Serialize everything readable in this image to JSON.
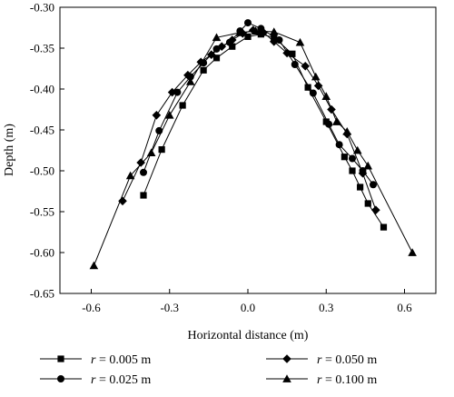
{
  "chart_data": {
    "type": "line",
    "xlabel": "Horizontal distance (m)",
    "ylabel": "Depth (m)",
    "xlim": [
      -0.72,
      0.72
    ],
    "ylim": [
      -0.65,
      -0.3
    ],
    "x_ticks": [
      "-0.6",
      "-0.3",
      "0.0",
      "0.3",
      "0.6"
    ],
    "y_ticks": [
      "-0.30",
      "-0.35",
      "-0.40",
      "-0.45",
      "-0.50",
      "-0.55",
      "-0.60",
      "-0.65"
    ],
    "x_tick_values": [
      -0.6,
      -0.3,
      0.0,
      0.3,
      0.6
    ],
    "y_tick_values": [
      -0.3,
      -0.35,
      -0.4,
      -0.45,
      -0.5,
      -0.55,
      -0.6,
      -0.65
    ],
    "grid": false,
    "legend_position": "bottom",
    "series": [
      {
        "name": "r = 0.005 m",
        "marker": "square",
        "x": [
          -0.4,
          -0.33,
          -0.25,
          -0.17,
          -0.12,
          -0.06,
          0.0,
          0.05,
          0.1,
          0.17,
          0.23,
          0.3,
          0.37,
          0.4,
          0.43,
          0.46,
          0.52
        ],
        "y": [
          -0.53,
          -0.474,
          -0.42,
          -0.377,
          -0.362,
          -0.348,
          -0.336,
          -0.333,
          -0.337,
          -0.357,
          -0.398,
          -0.44,
          -0.483,
          -0.5,
          -0.52,
          -0.54,
          -0.569
        ]
      },
      {
        "name": "r = 0.050 m",
        "marker": "diamond",
        "x": [
          -0.48,
          -0.41,
          -0.35,
          -0.29,
          -0.23,
          -0.18,
          -0.14,
          -0.1,
          -0.06,
          -0.02,
          0.02,
          0.06,
          0.1,
          0.15,
          0.22,
          0.27,
          0.32,
          0.38,
          0.44,
          0.49
        ],
        "y": [
          -0.537,
          -0.49,
          -0.432,
          -0.404,
          -0.383,
          -0.367,
          -0.358,
          -0.348,
          -0.34,
          -0.332,
          -0.328,
          -0.331,
          -0.342,
          -0.356,
          -0.372,
          -0.396,
          -0.425,
          -0.455,
          -0.503,
          -0.548
        ]
      },
      {
        "name": "r = 0.025 m",
        "marker": "circle",
        "x": [
          -0.4,
          -0.34,
          -0.27,
          -0.22,
          -0.17,
          -0.12,
          -0.07,
          -0.03,
          0.0,
          0.05,
          0.12,
          0.18,
          0.25,
          0.31,
          0.35,
          0.4,
          0.44,
          0.48
        ],
        "y": [
          -0.502,
          -0.451,
          -0.404,
          -0.385,
          -0.368,
          -0.351,
          -0.343,
          -0.329,
          -0.319,
          -0.326,
          -0.34,
          -0.37,
          -0.405,
          -0.443,
          -0.468,
          -0.485,
          -0.5,
          -0.517
        ]
      },
      {
        "name": "r = 0.100 m",
        "marker": "triangle",
        "x": [
          -0.59,
          -0.45,
          -0.37,
          -0.3,
          -0.22,
          -0.12,
          -0.03,
          0.03,
          0.1,
          0.2,
          0.26,
          0.3,
          0.34,
          0.38,
          0.42,
          0.46,
          0.63
        ],
        "y": [
          -0.616,
          -0.506,
          -0.478,
          -0.432,
          -0.391,
          -0.337,
          -0.331,
          -0.329,
          -0.33,
          -0.343,
          -0.385,
          -0.409,
          -0.44,
          -0.452,
          -0.475,
          -0.494,
          -0.6
        ]
      }
    ]
  },
  "legend": {
    "items": [
      {
        "symbol": "r",
        "text": " = 0.005 m"
      },
      {
        "symbol": "r",
        "text": " = 0.050 m"
      },
      {
        "symbol": "r",
        "text": " = 0.025 m"
      },
      {
        "symbol": "r",
        "text": " = 0.100 m"
      }
    ]
  }
}
